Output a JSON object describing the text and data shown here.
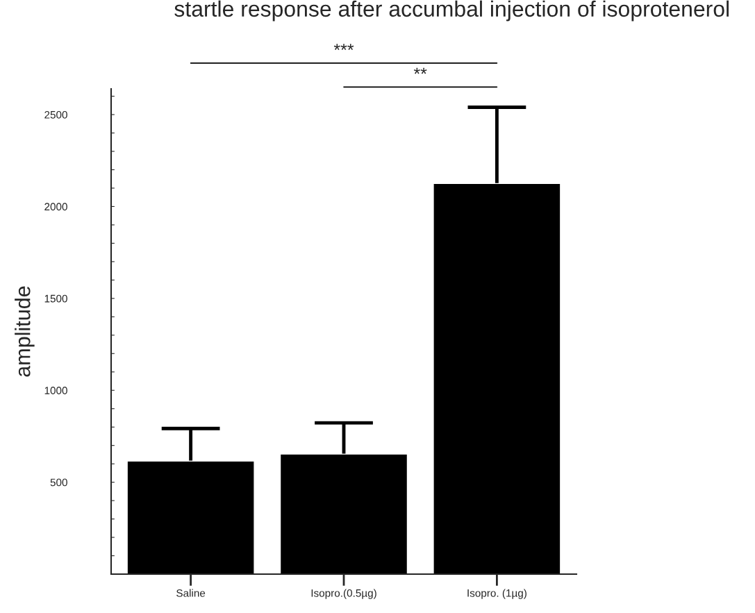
{
  "chart_data": {
    "type": "bar",
    "title": "startle response after accumbal injection of isoprotenerol",
    "ylabel": "amplitude",
    "categories": [
      "Saline",
      "Isopro.(0.5µg)",
      "Isopro. (1µg)"
    ],
    "values": [
      615,
      653,
      2125
    ],
    "errors": [
      [
        615,
        792
      ],
      [
        653,
        823
      ],
      [
        2125,
        2540
      ]
    ],
    "color": "#000000",
    "ylim": [
      0,
      2640
    ],
    "yticks": [
      {
        "value": 100,
        "label": null
      },
      {
        "value": 200,
        "label": null
      },
      {
        "value": 300,
        "label": null
      },
      {
        "value": 400,
        "label": null
      },
      500,
      {
        "value": 600,
        "label": null
      },
      {
        "value": 700,
        "label": null
      },
      {
        "value": 800,
        "label": null
      },
      {
        "value": 900,
        "label": null
      },
      1000,
      {
        "value": 1100,
        "label": null
      },
      {
        "value": 1200,
        "label": null
      },
      {
        "value": 1300,
        "label": null
      },
      {
        "value": 1400,
        "label": null
      },
      1500,
      {
        "value": 1600,
        "label": null
      },
      {
        "value": 1700,
        "label": null
      },
      {
        "value": 1800,
        "label": null
      },
      {
        "value": 1900,
        "label": null
      },
      2000,
      {
        "value": 2100,
        "label": null
      },
      {
        "value": 2200,
        "label": null
      },
      {
        "value": 2300,
        "label": null
      },
      {
        "value": 2400,
        "label": null
      },
      2500,
      {
        "value": 2600,
        "label": null
      }
    ],
    "annotations": [
      "***",
      "**"
    ],
    "grid": false
  }
}
